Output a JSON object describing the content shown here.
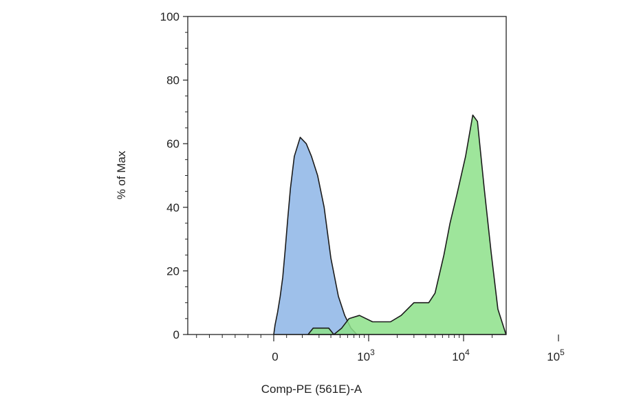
{
  "chart_data": {
    "type": "area",
    "xlabel": "Comp-PE (561E)-A",
    "ylabel": "% of Max",
    "ylim": [
      0,
      100
    ],
    "y_ticks": [
      {
        "value": 0,
        "label": "0"
      },
      {
        "value": 20,
        "label": "20"
      },
      {
        "value": 40,
        "label": "40"
      },
      {
        "value": 60,
        "label": "60"
      },
      {
        "value": 80,
        "label": "80"
      },
      {
        "value": 100,
        "label": "100"
      }
    ],
    "x_scale": "biexponential",
    "x_ticks": [
      {
        "value": 0,
        "label": "0",
        "exp": ""
      },
      {
        "value": 1000,
        "label": "10",
        "exp": "3"
      },
      {
        "value": 10000,
        "label": "10",
        "exp": "4"
      },
      {
        "value": 100000,
        "label": "10",
        "exp": "5"
      }
    ],
    "grid": false,
    "series": [
      {
        "color": "#9ec0ea",
        "points": [
          [
            0,
            0
          ],
          [
            10,
            3
          ],
          [
            30,
            7
          ],
          [
            50,
            12
          ],
          [
            70,
            18
          ],
          [
            90,
            27
          ],
          [
            110,
            37
          ],
          [
            130,
            46
          ],
          [
            160,
            56
          ],
          [
            190,
            62
          ],
          [
            220,
            60
          ],
          [
            250,
            56
          ],
          [
            290,
            50
          ],
          [
            340,
            40
          ],
          [
            400,
            24
          ],
          [
            480,
            12
          ],
          [
            560,
            6
          ],
          [
            650,
            2
          ],
          [
            750,
            0
          ]
        ]
      },
      {
        "color": "#8de08a",
        "points": [
          [
            230,
            0
          ],
          [
            260,
            2
          ],
          [
            380,
            2
          ],
          [
            430,
            0
          ],
          [
            520,
            2
          ],
          [
            620,
            5
          ],
          [
            800,
            6
          ],
          [
            1100,
            4
          ],
          [
            1700,
            4
          ],
          [
            2200,
            6
          ],
          [
            3000,
            10
          ],
          [
            4300,
            10
          ],
          [
            5000,
            13
          ],
          [
            6200,
            25
          ],
          [
            7200,
            35
          ],
          [
            8500,
            44
          ],
          [
            10500,
            56
          ],
          [
            12500,
            69
          ],
          [
            14000,
            67
          ],
          [
            16500,
            46
          ],
          [
            19500,
            26
          ],
          [
            23000,
            8
          ],
          [
            28000,
            0
          ]
        ]
      }
    ]
  }
}
